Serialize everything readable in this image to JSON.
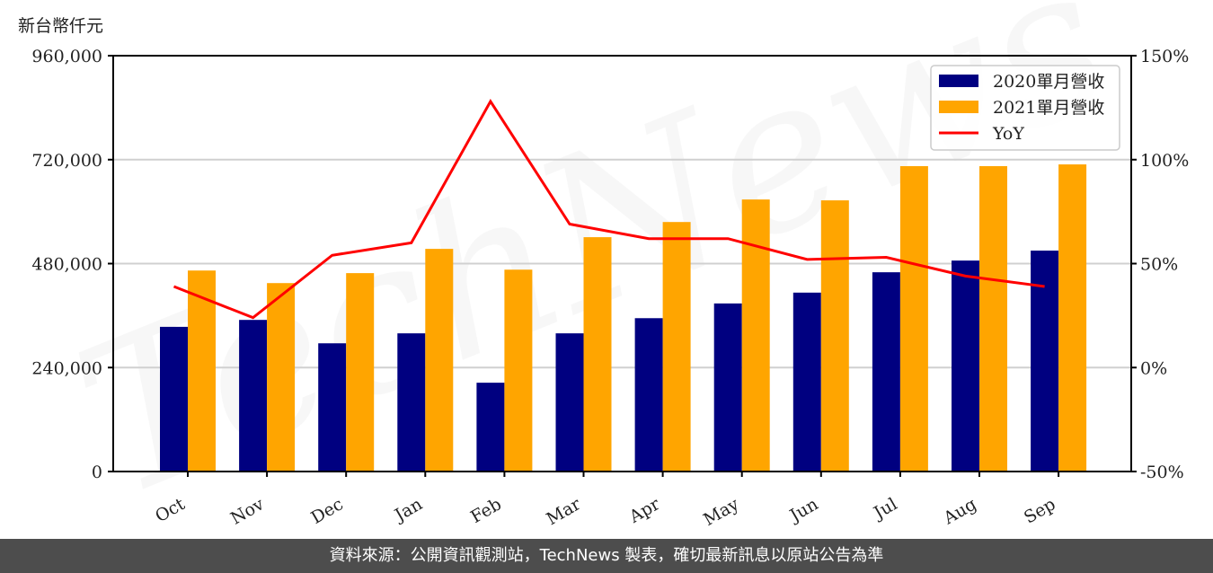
{
  "unit_label": "新台幣仟元",
  "footer": "資料來源：公開資訊觀測站，TechNews 製表，確切最新訊息以原站公告為準",
  "watermark": "TechNews",
  "colors": {
    "series_2020": "#000080",
    "series_2021": "#ffa500",
    "yoy": "#ff0000",
    "grid": "#d0d0d0",
    "footer_bg": "#4d4d4d"
  },
  "chart_data": {
    "type": "bar",
    "title": "",
    "xlabel": "",
    "ylabel": "新台幣仟元",
    "y2label": "",
    "categories": [
      "Oct",
      "Nov",
      "Dec",
      "Jan",
      "Feb",
      "Mar",
      "Apr",
      "May",
      "Jun",
      "Jul",
      "Aug",
      "Sep"
    ],
    "series": [
      {
        "name": "2020單月營收",
        "type": "bar",
        "axis": "left",
        "values": [
          334000,
          350000,
          296000,
          319000,
          205000,
          319000,
          354000,
          388000,
          413000,
          460000,
          487000,
          510000
        ]
      },
      {
        "name": "2021單月營收",
        "type": "bar",
        "axis": "left",
        "values": [
          464000,
          435000,
          458000,
          514000,
          466000,
          541000,
          576000,
          628000,
          626000,
          705000,
          705000,
          709000
        ]
      },
      {
        "name": "YoY",
        "type": "line",
        "axis": "right",
        "unit": "%",
        "values": [
          39,
          24,
          54,
          60,
          128,
          69,
          62,
          62,
          52,
          53,
          44,
          39
        ]
      }
    ],
    "ylim": [
      0,
      960000
    ],
    "yticks": [
      0,
      240000,
      480000,
      720000,
      960000
    ],
    "ytick_labels": [
      "0",
      "240,000",
      "480,000",
      "720,000",
      "960,000"
    ],
    "y2lim": [
      -50,
      150
    ],
    "y2ticks": [
      -50,
      0,
      50,
      100,
      150
    ],
    "y2tick_labels": [
      "-50%",
      "0%",
      "50%",
      "100%",
      "150%"
    ],
    "grid": true,
    "legend_position": "upper right",
    "legend": [
      "2020單月營收",
      "2021單月營收",
      "YoY"
    ]
  }
}
